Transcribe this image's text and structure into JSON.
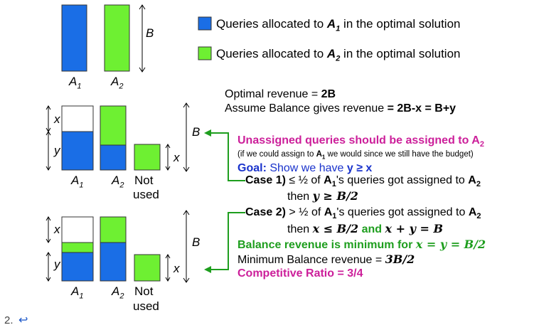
{
  "colors": {
    "blue": "#1a6ee6",
    "green": "#6ef032",
    "arrow_green": "#1e9e1e",
    "magenta": "#cc1f9a",
    "goal_blue": "#1a33cc"
  },
  "legend": {
    "a1_prefix": "Queries allocated to ",
    "a1_bold": "A",
    "a1_sub": "1",
    "a1_suffix": " in the optimal solution",
    "a2_prefix": "Queries allocated to ",
    "a2_bold": "A",
    "a2_sub": "2",
    "a2_suffix": " in the optimal solution"
  },
  "labels": {
    "A": "A",
    "sub1": "1",
    "sub2": "2",
    "B": "B",
    "x": "x",
    "y": "y",
    "not": "Not",
    "used": "used"
  },
  "text": {
    "optimal_prefix": "Optimal revenue = ",
    "optimal_value": "2B",
    "assume_prefix": "Assume Balance gives revenue ",
    "assume_value": "= 2B-x = B+y",
    "unassigned_prefix": "Unassigned queries should be assigned to A",
    "unassigned_sub": "2",
    "if_prefix": "(if we could assign to ",
    "if_a": "A",
    "if_sub": "1",
    "if_suffix": " we would since we still have the budget)",
    "goal_label": "Goal:",
    "goal_text": " Show we have ",
    "goal_cond": "y ≥ x",
    "case1_label": "Case 1)",
    "case1_text": " ≤ ½ of ",
    "case1_a": "A",
    "case1_sub": "1",
    "case1_text2": "'s queries got assigned to ",
    "case1_a2": "A",
    "case1_sub2": "2",
    "case1_then": "then ",
    "case1_math": "y ≥ B/2",
    "case2_label": "Case 2)",
    "case2_text": " > ½ of ",
    "case2_a": "A",
    "case2_sub": "1",
    "case2_text2": "'s queries got assigned to ",
    "case2_a2": "A",
    "case2_sub2": "2",
    "case2_then": "then ",
    "case2_math1": "x ≤ B/2",
    "case2_and": " and ",
    "case2_math2": "x + y = B",
    "balance_min_prefix": "Balance revenue is minimum for ",
    "balance_min_math": "x = y = B/2",
    "min_balance_prefix": "Minimum Balance revenue = ",
    "min_balance_math": "3B/2",
    "competitive": "Competitive Ratio = 3/4"
  },
  "footer": {
    "number": "2.",
    "return_glyph": "↩"
  }
}
